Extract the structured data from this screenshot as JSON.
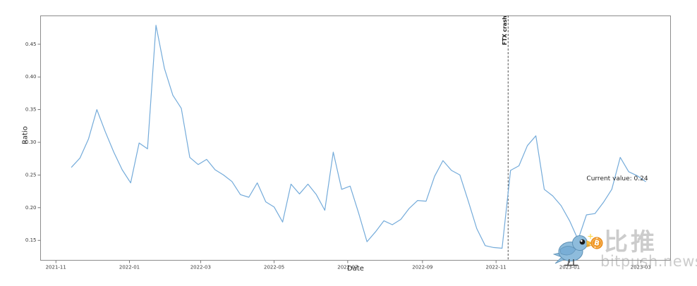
{
  "figure": {
    "background": "#ffffff",
    "annotations": {
      "ftx_label": "FTX crash",
      "current_value_label": "Current value: 0.24"
    },
    "watermark": {
      "cn_text": "比推",
      "en_text": "bitpush.news",
      "coin_letter": "B",
      "bird_color": "#8ebcdc",
      "bird_outline": "#5d90b5",
      "coin_color": "#f0941e",
      "text_color": "#9a9a9a"
    },
    "colors": {
      "series_line": "#74abda",
      "spine": "#8c8c8c",
      "tick": "#555555",
      "tick_label": "#3a3a3a",
      "crash_line": "#3a3a3a"
    }
  },
  "chart_data": {
    "type": "line",
    "title": "",
    "xlabel": "Date",
    "ylabel": "Ratio",
    "grid": false,
    "legend": "none",
    "xlim": [
      "2021-10-19",
      "2023-03-26"
    ],
    "ylim": [
      0.119,
      0.494
    ],
    "y_ticks": [
      0.15,
      0.2,
      0.25,
      0.3,
      0.35,
      0.4,
      0.45
    ],
    "x_ticks": [
      {
        "label": "2021-11",
        "date": "2021-11-01"
      },
      {
        "label": "2022-01",
        "date": "2022-01-01"
      },
      {
        "label": "2022-03",
        "date": "2022-03-01"
      },
      {
        "label": "2022-05",
        "date": "2022-05-01"
      },
      {
        "label": "2022-07",
        "date": "2022-07-01"
      },
      {
        "label": "2022-09",
        "date": "2022-09-01"
      },
      {
        "label": "2022-11",
        "date": "2022-11-01"
      },
      {
        "label": "2023-01",
        "date": "2023-01-01"
      },
      {
        "label": "2023-03",
        "date": "2023-03-01"
      }
    ],
    "ftx_crash_date": "2022-11-11",
    "current_value": 0.24,
    "series": [
      {
        "name": "Ratio",
        "x": [
          "2021-11-14",
          "2021-11-21",
          "2021-11-28",
          "2021-12-05",
          "2021-12-12",
          "2021-12-19",
          "2021-12-26",
          "2022-01-02",
          "2022-01-09",
          "2022-01-16",
          "2022-01-23",
          "2022-01-30",
          "2022-02-06",
          "2022-02-13",
          "2022-02-20",
          "2022-02-27",
          "2022-03-06",
          "2022-03-13",
          "2022-03-20",
          "2022-03-27",
          "2022-04-03",
          "2022-04-10",
          "2022-04-17",
          "2022-04-24",
          "2022-05-01",
          "2022-05-08",
          "2022-05-15",
          "2022-05-22",
          "2022-05-29",
          "2022-06-05",
          "2022-06-12",
          "2022-06-19",
          "2022-06-26",
          "2022-07-03",
          "2022-07-10",
          "2022-07-17",
          "2022-07-24",
          "2022-07-31",
          "2022-08-07",
          "2022-08-14",
          "2022-08-21",
          "2022-08-28",
          "2022-09-04",
          "2022-09-11",
          "2022-09-18",
          "2022-09-25",
          "2022-10-02",
          "2022-10-09",
          "2022-10-16",
          "2022-10-23",
          "2022-10-30",
          "2022-11-06",
          "2022-11-13",
          "2022-11-20",
          "2022-11-27",
          "2022-12-04",
          "2022-12-11",
          "2022-12-18",
          "2022-12-25",
          "2023-01-01",
          "2023-01-08",
          "2023-01-15",
          "2023-01-22",
          "2023-01-29",
          "2023-02-05",
          "2023-02-12",
          "2023-02-19",
          "2023-02-26",
          "2023-03-05"
        ],
        "values": [
          0.262,
          0.276,
          0.305,
          0.35,
          0.316,
          0.285,
          0.258,
          0.238,
          0.299,
          0.29,
          0.479,
          0.413,
          0.372,
          0.352,
          0.277,
          0.266,
          0.274,
          0.258,
          0.25,
          0.24,
          0.22,
          0.216,
          0.238,
          0.209,
          0.201,
          0.178,
          0.236,
          0.221,
          0.236,
          0.22,
          0.196,
          0.285,
          0.228,
          0.233,
          0.192,
          0.148,
          0.163,
          0.18,
          0.174,
          0.182,
          0.199,
          0.211,
          0.21,
          0.248,
          0.272,
          0.257,
          0.25,
          0.21,
          0.168,
          0.142,
          0.139,
          0.138,
          0.257,
          0.264,
          0.295,
          0.31,
          0.228,
          0.218,
          0.203,
          0.18,
          0.151,
          0.189,
          0.191,
          0.208,
          0.228,
          0.277,
          0.255,
          0.249,
          0.24
        ]
      }
    ]
  }
}
